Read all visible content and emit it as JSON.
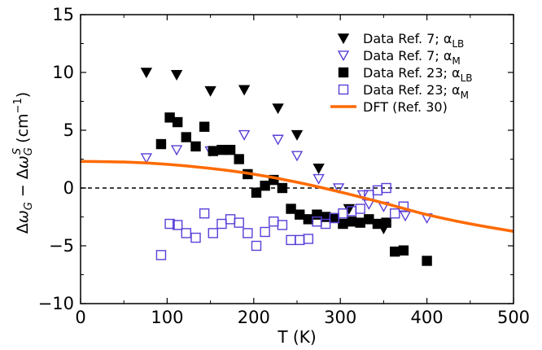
{
  "chart_data": {
    "type": "scatter",
    "xlabel": "T (K)",
    "ylabel": "Δω_G − Δω_G^S (cm⁻¹)",
    "xlim": [
      0,
      500
    ],
    "ylim": [
      -10,
      15
    ],
    "x_ticks": [
      "0",
      "100",
      "200",
      "300",
      "400",
      "500"
    ],
    "y_ticks": [
      "15",
      "10",
      "5",
      "0",
      "−5",
      "−10"
    ],
    "grid": false,
    "reference_line": 0,
    "legend_position": "top-right",
    "series": [
      {
        "name": "Data Ref. 7;   α_LB",
        "label_main": "Data Ref. 7;   α",
        "label_sub": "LB",
        "marker": "triangle-down",
        "filled": true,
        "color": "#000000",
        "points": [
          [
            76,
            10.0
          ],
          [
            111,
            9.8
          ],
          [
            150,
            8.4
          ],
          [
            189,
            8.5
          ],
          [
            228,
            6.9
          ],
          [
            250,
            4.6
          ],
          [
            275,
            1.7
          ],
          [
            310,
            -1.8
          ],
          [
            350,
            -3.5
          ]
        ]
      },
      {
        "name": "Data Ref. 7;   α_M",
        "label_main": "Data Ref. 7;   α",
        "label_sub": "M",
        "marker": "triangle-down",
        "filled": false,
        "color": "#5a3fd8",
        "points": [
          [
            76,
            2.6
          ],
          [
            111,
            3.3
          ],
          [
            150,
            3.2
          ],
          [
            189,
            4.6
          ],
          [
            228,
            4.2
          ],
          [
            250,
            2.8
          ],
          [
            275,
            0.8
          ],
          [
            298,
            0.0
          ],
          [
            326,
            -0.6
          ],
          [
            333,
            -1.4
          ],
          [
            350,
            -1.6
          ],
          [
            375,
            -2.4
          ],
          [
            400,
            -2.6
          ]
        ]
      },
      {
        "name": "Data Ref. 23; α_LB",
        "label_main": "Data Ref. 23; α",
        "label_sub": "LB",
        "marker": "square",
        "filled": true,
        "color": "#000000",
        "points": [
          [
            93,
            3.8
          ],
          [
            103,
            6.1
          ],
          [
            112,
            5.7
          ],
          [
            122,
            4.4
          ],
          [
            133,
            3.6
          ],
          [
            143,
            5.3
          ],
          [
            153,
            3.2
          ],
          [
            163,
            3.3
          ],
          [
            173,
            3.3
          ],
          [
            183,
            2.5
          ],
          [
            193,
            1.2
          ],
          [
            203,
            -0.4
          ],
          [
            213,
            0.2
          ],
          [
            223,
            0.7
          ],
          [
            233,
            0.0
          ],
          [
            243,
            -1.8
          ],
          [
            253,
            -2.3
          ],
          [
            263,
            -2.7
          ],
          [
            273,
            -2.3
          ],
          [
            283,
            -2.5
          ],
          [
            293,
            -2.6
          ],
          [
            303,
            -3.1
          ],
          [
            313,
            -2.9
          ],
          [
            323,
            -3.0
          ],
          [
            333,
            -2.7
          ],
          [
            343,
            -3.1
          ],
          [
            353,
            -3.0
          ],
          [
            363,
            -5.5
          ],
          [
            373,
            -5.4
          ],
          [
            400,
            -6.3
          ]
        ]
      },
      {
        "name": "Data Ref. 23; α_M",
        "label_main": "Data Ref. 23; α",
        "label_sub": "M",
        "marker": "square",
        "filled": false,
        "color": "#5a3fd8",
        "points": [
          [
            93,
            -5.8
          ],
          [
            103,
            -3.1
          ],
          [
            112,
            -3.2
          ],
          [
            122,
            -3.9
          ],
          [
            133,
            -4.3
          ],
          [
            143,
            -2.2
          ],
          [
            153,
            -3.9
          ],
          [
            163,
            -3.1
          ],
          [
            173,
            -2.7
          ],
          [
            183,
            -3.0
          ],
          [
            193,
            -3.9
          ],
          [
            203,
            -5.0
          ],
          [
            213,
            -3.8
          ],
          [
            223,
            -2.9
          ],
          [
            233,
            -3.2
          ],
          [
            243,
            -4.5
          ],
          [
            253,
            -4.5
          ],
          [
            263,
            -4.4
          ],
          [
            273,
            -2.9
          ],
          [
            283,
            -3.1
          ],
          [
            293,
            -2.6
          ],
          [
            303,
            -2.2
          ],
          [
            313,
            -2.0
          ],
          [
            323,
            -1.8
          ],
          [
            333,
            -0.6
          ],
          [
            343,
            -0.2
          ],
          [
            353,
            0.0
          ],
          [
            363,
            -2.2
          ],
          [
            373,
            -1.6
          ]
        ]
      },
      {
        "name": "DFT (Ref. 30)",
        "label_main": "DFT (Ref. 30)",
        "label_sub": "",
        "marker": "line",
        "filled": false,
        "color": "#ff6a00",
        "points": [
          [
            0,
            2.3
          ],
          [
            50,
            2.25
          ],
          [
            100,
            2.05
          ],
          [
            150,
            1.7
          ],
          [
            200,
            1.2
          ],
          [
            250,
            0.5
          ],
          [
            300,
            -0.35
          ],
          [
            350,
            -1.3
          ],
          [
            400,
            -2.3
          ],
          [
            450,
            -3.1
          ],
          [
            500,
            -3.75
          ]
        ]
      }
    ]
  }
}
